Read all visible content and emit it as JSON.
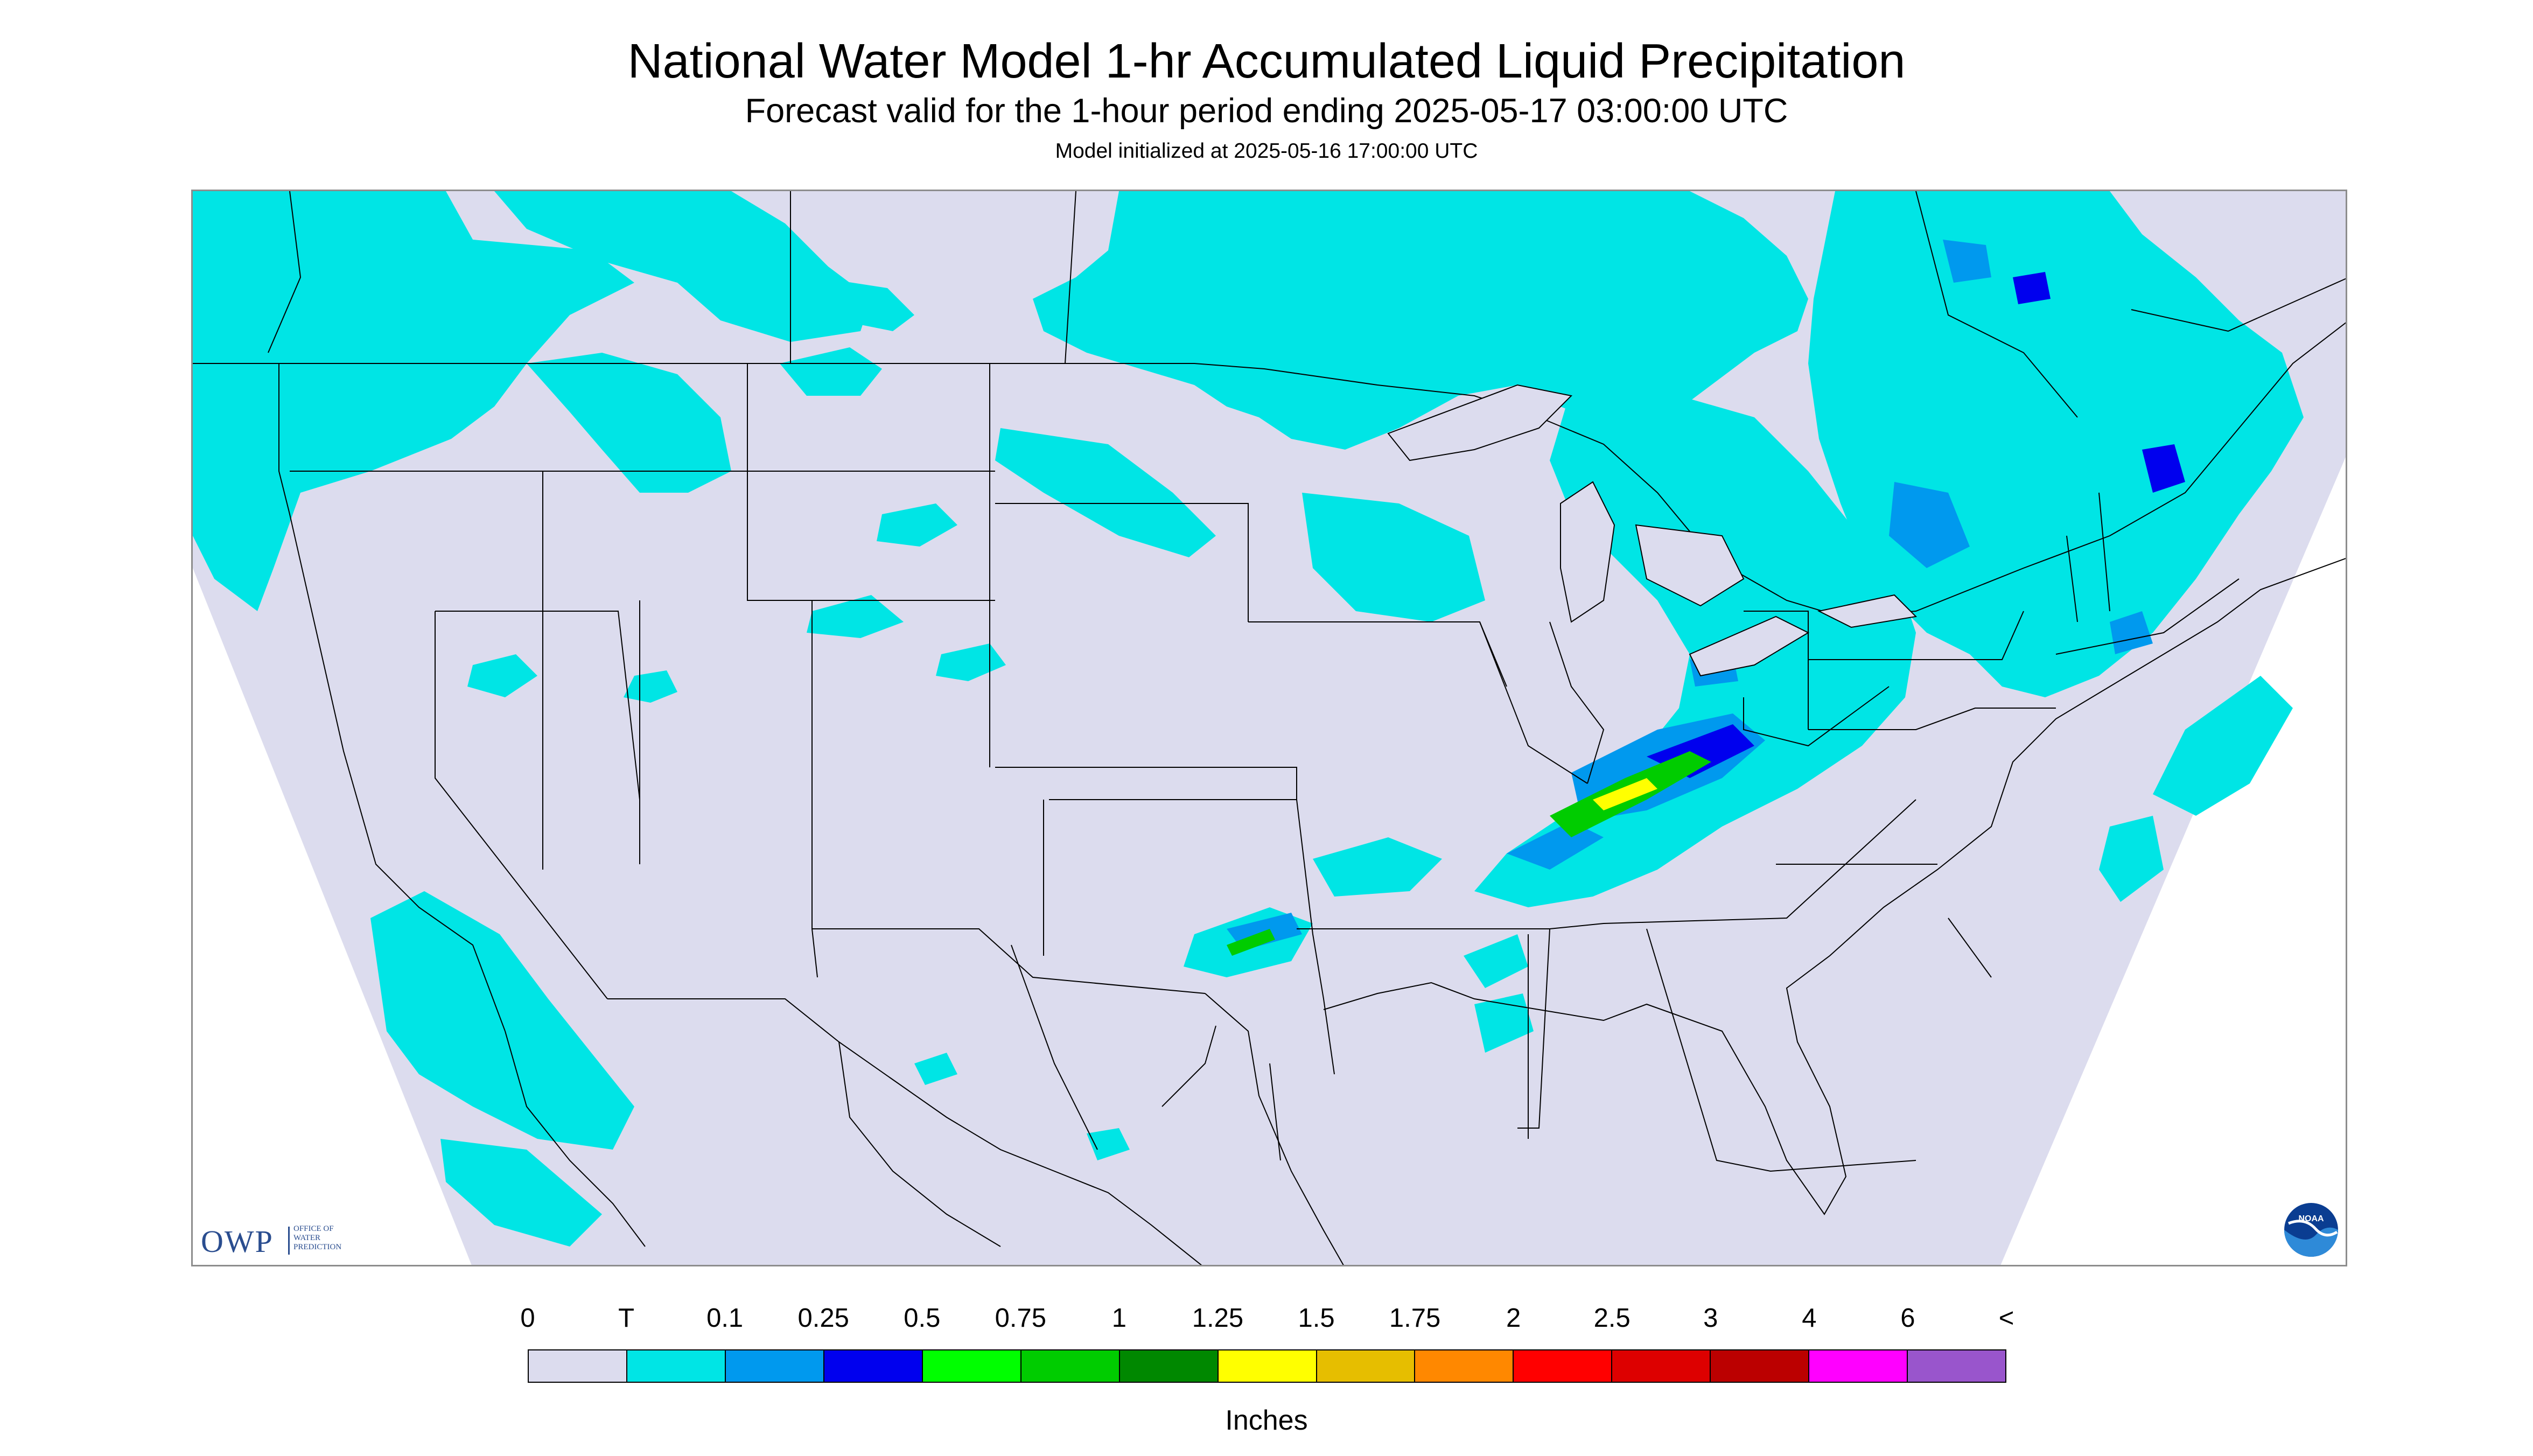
{
  "title": "National Water Model 1-hr Accumulated Liquid Precipitation",
  "subtitle": "Forecast valid for the 1-hour period ending 2025-05-17 03:00:00 UTC",
  "init_text": "Model initialized at 2025-05-16 17:00:00 UTC",
  "logo": {
    "owp_text": "OWP",
    "owp_subtext": "OFFICE OF\nWATER\nPREDICTION",
    "noaa_text": "NOAA"
  },
  "legend": {
    "labels": [
      "0",
      "T",
      "0.1",
      "0.25",
      "0.5",
      "0.75",
      "1",
      "1.25",
      "1.5",
      "1.75",
      "2",
      "2.5",
      "3",
      "4",
      "6",
      "<"
    ],
    "colors": [
      "#dcdcee",
      "#00e5e5",
      "#0099ee",
      "#0000ee",
      "#00ff00",
      "#00cc00",
      "#008800",
      "#ffff00",
      "#e6be00",
      "#ff8800",
      "#ff0000",
      "#dd0000",
      "#bb0000",
      "#ff00ff",
      "#9955cc"
    ],
    "units": "Inches"
  },
  "colors": {
    "background": "#dcdcee",
    "outside_domain": "#ffffff",
    "trace": "#00e5e5",
    "light": "#0099ee",
    "moderate": "#0000ee",
    "heavy": "#00cc00",
    "very_heavy": "#ffff00",
    "boundary": "#000000"
  }
}
